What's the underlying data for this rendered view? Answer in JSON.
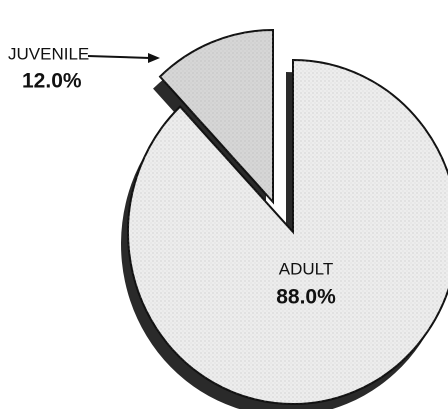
{
  "chart_data": {
    "type": "pie",
    "categories": [
      "JUVENILE",
      "ADULT"
    ],
    "values": [
      12.0,
      88.0
    ],
    "value_labels": [
      "12.0%",
      "88.0%"
    ],
    "colors": [
      "#d6d6d6",
      "#ededed"
    ]
  }
}
